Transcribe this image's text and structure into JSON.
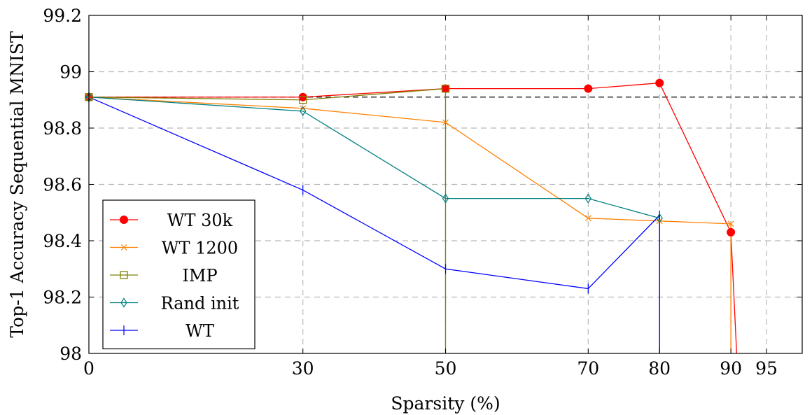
{
  "chart_data": {
    "type": "line",
    "title": "",
    "xlabel": "Sparsity (%)",
    "ylabel": "Top-1 Accuracy Sequential MNIST",
    "xlim": [
      0,
      100
    ],
    "ylim": [
      98.0,
      99.2
    ],
    "xticks": [
      0,
      30,
      50,
      70,
      80,
      90,
      95
    ],
    "yticks": [
      98,
      98.2,
      98.4,
      98.6,
      98.8,
      99,
      99.2
    ],
    "ytick_labels": [
      "98",
      "98.2",
      "98.4",
      "98.6",
      "98.8",
      "99",
      "99.2"
    ],
    "grid": true,
    "legend_position": "bottom-left",
    "reference_line": {
      "y": 98.91,
      "style": "dashed",
      "color": "#000000"
    },
    "series": [
      {
        "name": "WT_30k",
        "label": "WT 30k",
        "color": "#ff0000",
        "marker": "circle",
        "x": [
          0,
          30,
          50,
          70,
          80,
          90,
          91
        ],
        "y": [
          98.91,
          98.91,
          98.94,
          98.94,
          98.96,
          98.43,
          97.9
        ]
      },
      {
        "name": "WT_1200",
        "label": "WT 1200",
        "color": "#ff8000",
        "marker": "x",
        "x": [
          0,
          30,
          50,
          70,
          80,
          90,
          90
        ],
        "y": [
          98.91,
          98.87,
          98.82,
          98.48,
          98.47,
          98.46,
          97.9
        ]
      },
      {
        "name": "IMP",
        "label": "IMP",
        "color": "#808000",
        "marker": "square",
        "x": [
          0,
          30,
          50,
          50
        ],
        "y": [
          98.91,
          98.9,
          98.94,
          97.9
        ]
      },
      {
        "name": "Rand_init",
        "label": "Rand init",
        "color": "#008080",
        "marker": "diamond",
        "x": [
          0,
          30,
          50,
          70,
          80,
          80
        ],
        "y": [
          98.91,
          98.86,
          98.55,
          98.55,
          98.48,
          97.9
        ]
      },
      {
        "name": "WT",
        "label": "WT",
        "color": "#0000ff",
        "marker": "plus",
        "x": [
          0,
          30,
          50,
          70,
          80,
          80
        ],
        "y": [
          98.91,
          98.58,
          98.3,
          98.23,
          98.49,
          97.9
        ]
      }
    ]
  }
}
